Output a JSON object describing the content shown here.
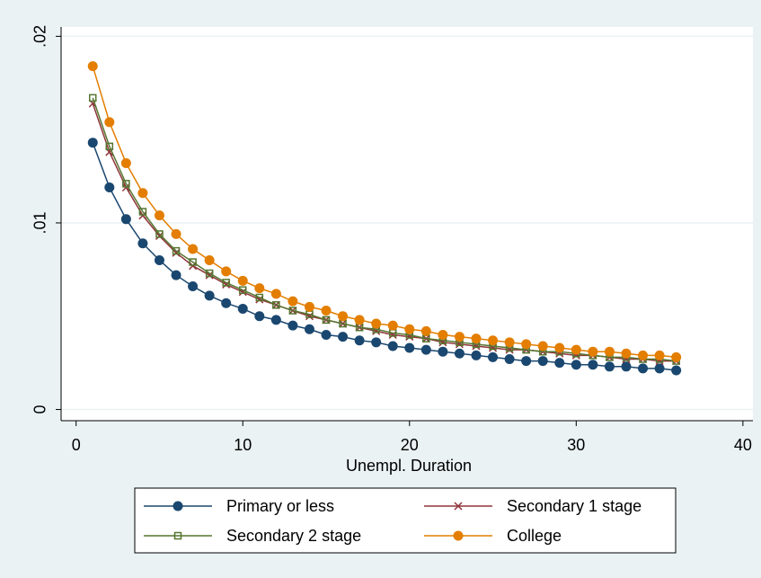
{
  "chart_data": {
    "type": "line",
    "xlabel": "Unempl. Duration",
    "x": [
      1,
      2,
      3,
      4,
      5,
      6,
      7,
      8,
      9,
      10,
      11,
      12,
      13,
      14,
      15,
      16,
      17,
      18,
      19,
      20,
      21,
      22,
      23,
      24,
      25,
      26,
      27,
      28,
      29,
      30,
      31,
      32,
      33,
      34,
      35,
      36
    ],
    "series": [
      {
        "name": "Primary or less",
        "color": "#1a476f",
        "marker": "circle",
        "values": [
          0.0143,
          0.0119,
          0.0102,
          0.0089,
          0.008,
          0.0072,
          0.0066,
          0.0061,
          0.0057,
          0.0054,
          0.005,
          0.0048,
          0.0045,
          0.0043,
          0.004,
          0.0039,
          0.0037,
          0.0036,
          0.0034,
          0.0033,
          0.0032,
          0.0031,
          0.003,
          0.0029,
          0.0028,
          0.0027,
          0.0026,
          0.0026,
          0.0025,
          0.0024,
          0.0024,
          0.0023,
          0.0023,
          0.0022,
          0.0022,
          0.0021
        ]
      },
      {
        "name": "Secondary 1 stage",
        "color": "#90353b",
        "marker": "x",
        "values": [
          0.0164,
          0.0138,
          0.0119,
          0.0104,
          0.0093,
          0.0084,
          0.0077,
          0.0072,
          0.0067,
          0.0063,
          0.0059,
          0.0056,
          0.0053,
          0.005,
          0.0048,
          0.0046,
          0.0044,
          0.0042,
          0.004,
          0.0039,
          0.0038,
          0.0036,
          0.0035,
          0.0034,
          0.0033,
          0.0032,
          0.0032,
          0.0031,
          0.003,
          0.0029,
          0.0029,
          0.0028,
          0.0027,
          0.0027,
          0.0026,
          0.0026
        ]
      },
      {
        "name": "Secondary 2 stage",
        "color": "#55752f",
        "marker": "square",
        "values": [
          0.0167,
          0.0141,
          0.0121,
          0.0106,
          0.0094,
          0.0085,
          0.0079,
          0.0073,
          0.0068,
          0.0064,
          0.006,
          0.0056,
          0.0053,
          0.0051,
          0.0048,
          0.0046,
          0.0044,
          0.0043,
          0.0041,
          0.004,
          0.0038,
          0.0037,
          0.0036,
          0.0035,
          0.0034,
          0.0033,
          0.0032,
          0.0031,
          0.0031,
          0.003,
          0.0029,
          0.0028,
          0.0028,
          0.0027,
          0.0027,
          0.0026
        ]
      },
      {
        "name": "College",
        "color": "#e37e00",
        "marker": "circle",
        "values": [
          0.0184,
          0.0154,
          0.0132,
          0.0116,
          0.0104,
          0.0094,
          0.0086,
          0.008,
          0.0074,
          0.0069,
          0.0065,
          0.0062,
          0.0058,
          0.0055,
          0.0053,
          0.005,
          0.0048,
          0.0046,
          0.0045,
          0.0043,
          0.0042,
          0.004,
          0.0039,
          0.0038,
          0.0037,
          0.0036,
          0.0035,
          0.0034,
          0.0033,
          0.0032,
          0.0031,
          0.0031,
          0.003,
          0.0029,
          0.0029,
          0.0028
        ]
      }
    ],
    "xlim": [
      -0.9,
      40.6
    ],
    "xticks": [
      0,
      10,
      20,
      30,
      40
    ],
    "ylim": [
      -0.0006,
      0.0205
    ],
    "yticks": [
      0,
      {
        "value": 0.01,
        "label": ".01"
      },
      {
        "value": 0.02,
        "label": ".02"
      }
    ],
    "grid": true,
    "legend": "bottom"
  }
}
